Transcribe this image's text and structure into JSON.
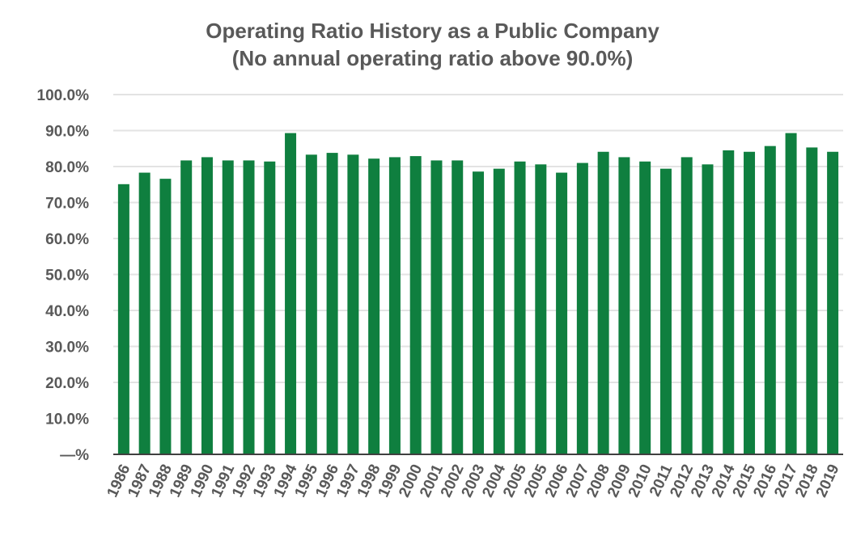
{
  "chart_data": {
    "type": "bar",
    "title": "Operating Ratio History as a Public Company",
    "subtitle": "(No annual operating ratio above 90.0%)",
    "xlabel": "",
    "ylabel": "",
    "ylim": [
      0,
      100
    ],
    "yticks": [
      "—%",
      "10.0%",
      "20.0%",
      "30.0%",
      "40.0%",
      "50.0%",
      "60.0%",
      "70.0%",
      "80.0%",
      "90.0%",
      "100.0%"
    ],
    "grid": true,
    "legend": "none",
    "bar_color": "#0f7f3f",
    "categories": [
      "1986",
      "1987",
      "1988",
      "1989",
      "1990",
      "1991",
      "1992",
      "1993",
      "1994",
      "1995",
      "1996",
      "1997",
      "1998",
      "1999",
      "2000",
      "2001",
      "2002",
      "2003",
      "2004",
      "2005",
      "2005",
      "2006",
      "2007",
      "2008",
      "2009",
      "2010",
      "2011",
      "2012",
      "2013",
      "2014",
      "2015",
      "2016",
      "2017",
      "2018",
      "2019"
    ],
    "values": [
      75.1,
      78.3,
      76.6,
      81.7,
      82.6,
      81.7,
      81.7,
      81.4,
      89.3,
      83.3,
      83.8,
      83.3,
      82.2,
      82.6,
      82.9,
      81.7,
      81.7,
      78.6,
      79.4,
      81.4,
      80.6,
      78.3,
      81.0,
      84.1,
      82.6,
      81.4,
      79.4,
      82.6,
      80.6,
      84.5,
      84.1,
      85.7,
      89.3,
      85.3,
      84.1
    ]
  }
}
